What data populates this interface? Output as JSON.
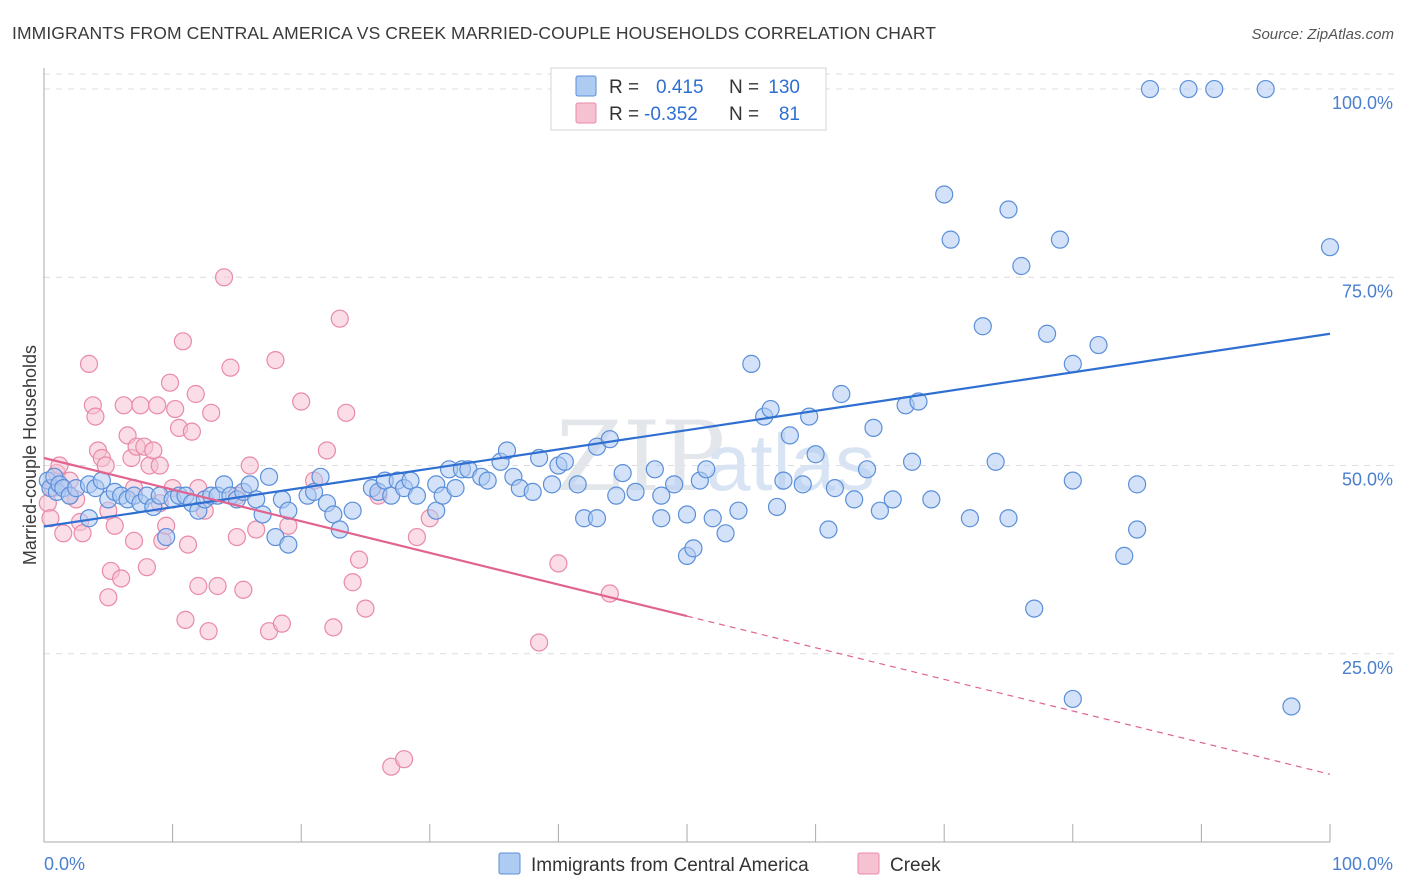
{
  "title": "IMMIGRANTS FROM CENTRAL AMERICA VS CREEK MARRIED-COUPLE HOUSEHOLDS CORRELATION CHART",
  "source": "Source: ZipAtlas.com",
  "watermark": {
    "zip": "ZIP",
    "atlas": "atlas"
  },
  "legend": {
    "r_label": "R =",
    "n_label": "N =",
    "rows": [
      {
        "r": "0.415",
        "n": "130"
      },
      {
        "r": "-0.352",
        "n": "81"
      }
    ]
  },
  "bottom_legend": [
    "Immigrants from Central America",
    "Creek"
  ],
  "colors": {
    "blue_fill": "#aecbf2",
    "blue_stroke": "#5b8fd9",
    "blue_line": "#2f6fd1",
    "pink_fill": "#f6c1d1",
    "pink_stroke": "#e98aa8",
    "pink_line": "#e0648f",
    "tick_text": "#4a7fcf"
  },
  "chart_data": {
    "type": "scatter",
    "title": "IMMIGRANTS FROM CENTRAL AMERICA VS CREEK MARRIED-COUPLE HOUSEHOLDS CORRELATION CHART",
    "xlabel": "",
    "ylabel": "Married-couple Households",
    "xlim": [
      0,
      100
    ],
    "ylim": [
      0,
      102
    ],
    "x_tick_labels": [
      "0.0%",
      "100.0%"
    ],
    "y_ticks": [
      25,
      50,
      75,
      100
    ],
    "y_tick_labels": [
      "25.0%",
      "50.0%",
      "75.0%",
      "100.0%"
    ],
    "series": [
      {
        "name": "Immigrants from Central America",
        "r": 0.415,
        "n": 130,
        "trend": {
          "x": [
            0,
            100
          ],
          "y": [
            41.9,
            67.5
          ]
        },
        "points": [
          [
            0.3,
            48
          ],
          [
            0.5,
            47
          ],
          [
            0.8,
            48.5
          ],
          [
            1,
            46.5
          ],
          [
            1.2,
            47.5
          ],
          [
            1.5,
            47
          ],
          [
            2,
            46
          ],
          [
            2.5,
            47
          ],
          [
            3.5,
            43
          ],
          [
            3.5,
            47.5
          ],
          [
            4,
            47
          ],
          [
            4.5,
            48
          ],
          [
            5,
            45.5
          ],
          [
            5.5,
            46.5
          ],
          [
            6,
            46
          ],
          [
            6.5,
            45.5
          ],
          [
            7,
            46
          ],
          [
            7.5,
            45
          ],
          [
            8,
            46
          ],
          [
            8.5,
            44.5
          ],
          [
            9,
            46
          ],
          [
            9.5,
            40.5
          ],
          [
            10,
            45.5
          ],
          [
            10.5,
            46
          ],
          [
            11,
            46
          ],
          [
            11.5,
            45
          ],
          [
            12,
            44
          ],
          [
            12.5,
            45.5
          ],
          [
            13,
            46
          ],
          [
            13.5,
            46
          ],
          [
            14,
            47.5
          ],
          [
            14.5,
            46
          ],
          [
            15,
            45.5
          ],
          [
            15.5,
            46.5
          ],
          [
            16,
            47.5
          ],
          [
            16.5,
            45.5
          ],
          [
            17,
            43.5
          ],
          [
            17.5,
            48.5
          ],
          [
            18,
            40.5
          ],
          [
            18.5,
            45.5
          ],
          [
            19,
            44
          ],
          [
            19,
            39.5
          ],
          [
            20.5,
            46
          ],
          [
            21,
            46.5
          ],
          [
            21.5,
            48.5
          ],
          [
            22,
            45
          ],
          [
            22.5,
            43.5
          ],
          [
            23,
            41.5
          ],
          [
            24,
            44
          ],
          [
            25.5,
            47
          ],
          [
            26,
            46.5
          ],
          [
            26.5,
            48
          ],
          [
            27,
            46
          ],
          [
            27.5,
            48
          ],
          [
            28,
            47
          ],
          [
            28.5,
            48
          ],
          [
            29,
            46
          ],
          [
            30.5,
            44
          ],
          [
            30.5,
            47.5
          ],
          [
            31,
            46
          ],
          [
            31.5,
            49.5
          ],
          [
            32,
            47
          ],
          [
            32.5,
            49.5
          ],
          [
            33,
            49.5
          ],
          [
            34,
            48.5
          ],
          [
            34.5,
            48
          ],
          [
            35.5,
            50.5
          ],
          [
            36,
            52
          ],
          [
            36.5,
            48.5
          ],
          [
            37,
            47
          ],
          [
            38,
            46.5
          ],
          [
            38.5,
            51
          ],
          [
            39.5,
            47.5
          ],
          [
            40,
            50
          ],
          [
            40.5,
            50.5
          ],
          [
            41.5,
            47.5
          ],
          [
            42,
            43
          ],
          [
            43,
            52.5
          ],
          [
            43,
            43
          ],
          [
            44,
            53.5
          ],
          [
            44.5,
            46
          ],
          [
            45,
            49
          ],
          [
            46,
            46.5
          ],
          [
            47.5,
            49.5
          ],
          [
            48,
            46
          ],
          [
            48,
            43
          ],
          [
            49,
            47.5
          ],
          [
            50,
            43.5
          ],
          [
            50,
            38
          ],
          [
            50.5,
            39
          ],
          [
            51,
            48
          ],
          [
            51.5,
            49.5
          ],
          [
            52,
            43
          ],
          [
            53,
            41
          ],
          [
            54,
            44
          ],
          [
            55,
            63.5
          ],
          [
            56,
            56.5
          ],
          [
            56.5,
            57.5
          ],
          [
            57,
            44.5
          ],
          [
            57.5,
            48
          ],
          [
            58,
            54
          ],
          [
            59,
            47.5
          ],
          [
            59.5,
            56.5
          ],
          [
            60,
            51.5
          ],
          [
            61,
            41.5
          ],
          [
            61.5,
            47
          ],
          [
            62,
            59.5
          ],
          [
            63,
            45.5
          ],
          [
            64,
            49.5
          ],
          [
            64.5,
            55
          ],
          [
            65,
            44
          ],
          [
            66,
            45.5
          ],
          [
            67,
            58
          ],
          [
            67.5,
            50.5
          ],
          [
            68,
            58.5
          ],
          [
            69,
            45.5
          ],
          [
            70,
            86
          ],
          [
            70.5,
            80
          ],
          [
            72,
            43
          ],
          [
            73,
            68.5
          ],
          [
            74,
            50.5
          ],
          [
            75,
            84
          ],
          [
            75,
            43
          ],
          [
            76,
            76.5
          ],
          [
            77,
            31
          ],
          [
            78,
            67.5
          ],
          [
            79,
            80
          ],
          [
            80,
            63.5
          ],
          [
            80,
            48
          ],
          [
            80,
            19
          ],
          [
            82,
            66
          ],
          [
            84,
            38
          ],
          [
            85,
            41.5
          ],
          [
            85,
            47.5
          ],
          [
            86,
            100
          ],
          [
            89,
            100
          ],
          [
            91,
            100
          ],
          [
            95,
            100
          ],
          [
            97,
            18
          ],
          [
            100,
            79
          ]
        ]
      },
      {
        "name": "Creek",
        "r": -0.352,
        "n": 81,
        "trend": {
          "x": [
            0,
            50
          ],
          "y": [
            51,
            30
          ]
        },
        "trend_dashed": {
          "x": [
            50,
            100
          ],
          "y": [
            30,
            9
          ]
        },
        "points": [
          [
            0.3,
            45
          ],
          [
            0.5,
            43
          ],
          [
            0.7,
            47
          ],
          [
            1,
            49
          ],
          [
            1.2,
            50
          ],
          [
            1.5,
            41
          ],
          [
            2,
            48
          ],
          [
            2.5,
            45.5
          ],
          [
            2.8,
            42.5
          ],
          [
            3,
            41
          ],
          [
            3.5,
            63.5
          ],
          [
            3.8,
            58
          ],
          [
            4,
            56.5
          ],
          [
            4.2,
            52
          ],
          [
            4.5,
            51
          ],
          [
            4.8,
            50
          ],
          [
            5,
            32.5
          ],
          [
            5.2,
            36
          ],
          [
            5.5,
            42
          ],
          [
            6,
            35
          ],
          [
            6.2,
            58
          ],
          [
            6.5,
            54
          ],
          [
            6.8,
            51
          ],
          [
            7,
            47
          ],
          [
            7.2,
            52.5
          ],
          [
            7.5,
            58
          ],
          [
            7.8,
            52.5
          ],
          [
            8,
            36.5
          ],
          [
            8.2,
            50
          ],
          [
            8.5,
            52
          ],
          [
            8.8,
            58
          ],
          [
            9,
            50
          ],
          [
            9.2,
            40
          ],
          [
            9.5,
            42
          ],
          [
            9.8,
            61
          ],
          [
            10,
            47
          ],
          [
            10.2,
            57.5
          ],
          [
            10.5,
            55
          ],
          [
            10.8,
            66.5
          ],
          [
            11,
            29.5
          ],
          [
            11.2,
            39.5
          ],
          [
            11.5,
            54.5
          ],
          [
            11.8,
            59.5
          ],
          [
            12,
            34
          ],
          [
            12.5,
            44
          ],
          [
            12.8,
            28
          ],
          [
            13,
            57
          ],
          [
            13.5,
            34
          ],
          [
            14,
            75
          ],
          [
            14.5,
            63
          ],
          [
            15,
            40.5
          ],
          [
            15.5,
            33.5
          ],
          [
            16,
            50
          ],
          [
            16.5,
            41.5
          ],
          [
            17.5,
            28
          ],
          [
            18,
            64
          ],
          [
            18.5,
            29
          ],
          [
            19,
            42
          ],
          [
            20,
            58.5
          ],
          [
            21,
            48
          ],
          [
            22,
            52
          ],
          [
            22.5,
            28.5
          ],
          [
            23,
            69.5
          ],
          [
            23.5,
            57
          ],
          [
            24,
            34.5
          ],
          [
            24.5,
            37.5
          ],
          [
            25,
            31
          ],
          [
            26,
            46
          ],
          [
            27,
            10
          ],
          [
            28,
            11
          ],
          [
            29,
            40.5
          ],
          [
            30,
            43
          ],
          [
            38.5,
            26.5
          ],
          [
            40,
            37
          ],
          [
            44,
            33
          ],
          [
            2,
            46
          ],
          [
            5,
            44
          ],
          [
            7,
            40
          ],
          [
            9,
            45
          ],
          [
            12,
            47
          ],
          [
            15,
            46
          ]
        ]
      }
    ]
  }
}
